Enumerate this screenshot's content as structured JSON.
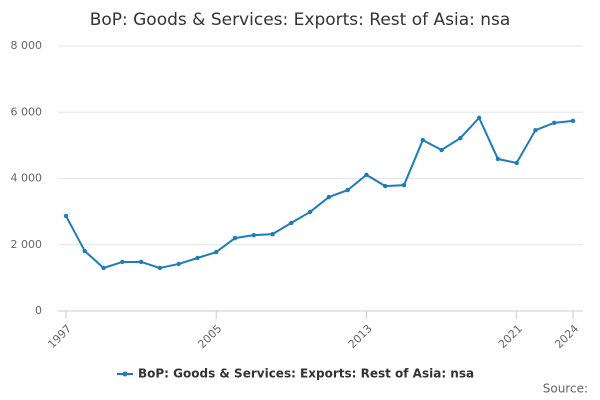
{
  "chart_data": {
    "type": "line",
    "title": "BoP: Goods & Services: Exports: Rest of Asia: nsa",
    "x": [
      1997,
      1998,
      1999,
      2000,
      2001,
      2002,
      2003,
      2004,
      2005,
      2006,
      2007,
      2008,
      2009,
      2010,
      2011,
      2012,
      2013,
      2014,
      2015,
      2016,
      2017,
      2018,
      2019,
      2020,
      2021,
      2022,
      2023,
      2024
    ],
    "series": [
      {
        "name": "BoP: Goods & Services: Exports: Rest of Asia: nsa",
        "color": "#1d7eb7",
        "values": [
          2870,
          1810,
          1300,
          1480,
          1480,
          1300,
          1420,
          1600,
          1780,
          2200,
          2290,
          2320,
          2660,
          2990,
          3440,
          3650,
          4110,
          3770,
          3800,
          5160,
          4860,
          5220,
          5830,
          4590,
          4470,
          5460,
          5680,
          5740
        ]
      }
    ],
    "xlim": [
      1997,
      2024
    ],
    "xticks": [
      1997,
      2005,
      2013,
      2021,
      2024
    ],
    "ylim": [
      0,
      8000
    ],
    "yticks": [
      0,
      {
        "value": 2000,
        "label": "2 000"
      },
      {
        "value": 4000,
        "label": "4 000"
      },
      {
        "value": 6000,
        "label": "6 000"
      },
      {
        "value": 8000,
        "label": "8 000"
      }
    ],
    "grid": true,
    "legend": "bottom",
    "source": "Source:"
  }
}
